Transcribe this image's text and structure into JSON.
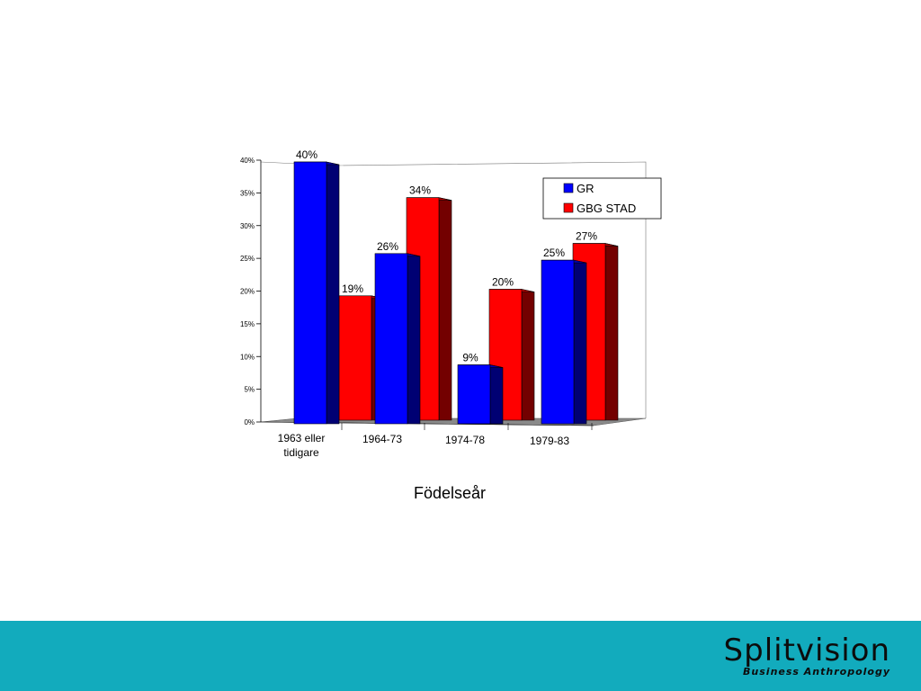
{
  "chart_data": {
    "type": "bar",
    "title": "",
    "xlabel": "Födelseår",
    "ylabel": "",
    "categories": [
      [
        "1963 eller",
        "tidigare"
      ],
      [
        "1964-73"
      ],
      [
        "1974-78"
      ],
      [
        "1979-83"
      ]
    ],
    "series": [
      {
        "name": "GR",
        "color": "#0000ff",
        "values": [
          40,
          26,
          9,
          25
        ],
        "labels": [
          "40%",
          "26%",
          "9%",
          "25%"
        ]
      },
      {
        "name": "GBG STAD",
        "color": "#ff0000",
        "values": [
          19,
          34,
          20,
          27
        ],
        "labels": [
          "19%",
          "34%",
          "20%",
          "27%"
        ]
      }
    ],
    "ylim": [
      0,
      40
    ],
    "yticks": [
      "0%",
      "5%",
      "10%",
      "15%",
      "20%",
      "25%",
      "30%",
      "35%",
      "40%"
    ],
    "legend_position": "top-right",
    "grid": false
  },
  "footer": {
    "logo_word": "Splitvision",
    "logo_sub": "Business Anthropology",
    "background_color": "#12abbd"
  }
}
